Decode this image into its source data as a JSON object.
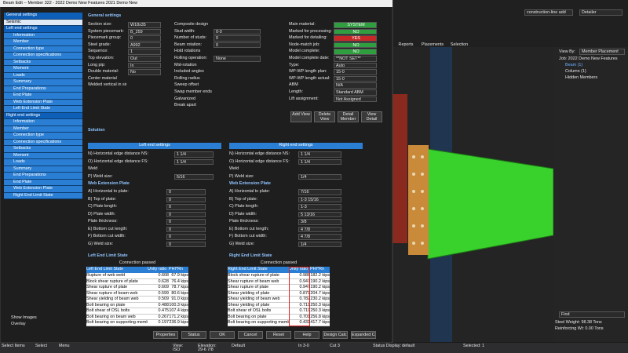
{
  "app": {
    "toolbar": [
      "Reports",
      "Placements",
      "Selection"
    ],
    "search": "construction-line add",
    "role": "Detailer"
  },
  "dialog": {
    "title": "Beam Edit -- Member 322 - 2022 Demo New Features 2021 Demo New",
    "nav": [
      {
        "text": "General settings"
      },
      {
        "text": "Seismic"
      },
      {
        "text": "Left end settings",
        "items": [
          "Information",
          "Member",
          "Connection type",
          "Connection specifications",
          "Setbacks",
          "Moment",
          "Loads",
          "Summary",
          "End Preparations",
          "End Plate",
          "Web Extension Plate",
          "Left End Limit State"
        ]
      },
      {
        "text": "Right end settings",
        "items": [
          "Information",
          "Member",
          "Connection type",
          "Connection specifications",
          "Setbacks",
          "Moment",
          "Loads",
          "Summary",
          "End Preparations",
          "End Plate",
          "Web Extension Plate",
          "Right End Limit State"
        ]
      }
    ],
    "nav_bottom": [
      "Show Images",
      "Overlay"
    ],
    "general": {
      "heading": "General settings",
      "col1": [
        [
          "Section size:",
          "W18x35"
        ],
        [
          "System piecemark:",
          "B_259"
        ],
        [
          "Piecemark group:",
          "0"
        ],
        [
          "Steel grade:",
          "A992"
        ],
        [
          "Sequence:",
          "1"
        ],
        [
          "Top elevation:",
          "Out"
        ],
        [
          "Long pip:",
          "In"
        ],
        [
          "Double material:",
          "No"
        ],
        [
          "Center material"
        ],
        [
          "Welded vertical in single material"
        ]
      ],
      "col2": [
        [
          "Composite design"
        ],
        [
          "Stud width:",
          "0-0"
        ],
        [
          "Number of studs:",
          "0"
        ],
        [
          "Beam rotation:",
          "0"
        ],
        [
          "Hold rotations"
        ],
        [
          "Rolling operation:",
          "None"
        ],
        [
          "Mid-rotation"
        ],
        [
          "Included angles"
        ],
        [
          "Rolling radius"
        ],
        [
          "Sweep offset"
        ],
        [
          "Swap member ends"
        ],
        [
          "Galvanized"
        ],
        [
          "Break apart"
        ]
      ],
      "col3": [
        [
          "Main material:",
          "SYSTEM",
          "#2e9e3e"
        ],
        [
          "Marked for processing:",
          "NO",
          "#2e9e3e"
        ],
        [
          "Marked for detailing:",
          "YES",
          "#c62828"
        ],
        [
          "Node-match job:",
          "NO",
          "#2e9e3e"
        ],
        [
          "Model complete:",
          "NO",
          "#2e9e3e"
        ],
        [
          "Model complete date:",
          "**NOT SET**"
        ],
        [
          "Type:",
          "Auto"
        ],
        [
          "WP-WP length plan:",
          "15-0"
        ],
        [
          "WP-WP length actual:",
          "15-0"
        ],
        [
          "ABM",
          "N/A"
        ],
        [
          "Length:",
          "Standard ABM"
        ],
        [
          "Lift assignment:",
          "Not Assigned"
        ]
      ],
      "buttons": [
        "Add View",
        "Delete View",
        "Detail Member",
        "View Detail"
      ]
    },
    "solution": "Solution",
    "ends": {
      "left_title": "Left end settings",
      "right_title": "Right end settings",
      "rows": [
        [
          "N) Horizontal edge distance NS:",
          "1 1/4",
          "1 1/4"
        ],
        [
          "O) Horizontal edge distance FS:",
          "1 1/4",
          "1 1/4"
        ],
        [
          "Weld"
        ],
        [
          "P) Weld size:",
          "5/16",
          "1/4"
        ]
      ]
    },
    "web_plate": {
      "heading": "Web Extension Plate",
      "rows": [
        [
          "A) Horizontal to plate:",
          "0",
          "7/16"
        ],
        [
          "B) Top of plate:",
          "0",
          "1-3 15/16"
        ],
        [
          "C) Plate length:",
          "0",
          "1-3"
        ],
        [
          "D) Plate width:",
          "0",
          "5 13/16"
        ],
        [
          "Plate thickness:",
          "0",
          "3/8"
        ],
        [
          "E) Bottom cut length:",
          "0",
          "4 7/8"
        ],
        [
          "F) Bottom cut width:",
          "0",
          "4 7/8"
        ],
        [
          "G) Weld size:",
          "0",
          "1/4"
        ]
      ]
    },
    "limit_left": {
      "heading": "Left End Limit State",
      "status": "Connection passed",
      "columns": [
        "Left End Limit State",
        "Unity ratio",
        "PHI*Rn"
      ],
      "rows": [
        [
          "Rupture of web weld",
          "0.608",
          "67.9 kips"
        ],
        [
          "Block shear rupture of plate",
          "0.628",
          "76.4 kips"
        ],
        [
          "Shear rupture of plate",
          "0.609",
          "78.7 kips"
        ],
        [
          "Shear rupture of beam web",
          "0.599",
          "80.6 kips"
        ],
        [
          "Shear yielding of beam web",
          "0.509",
          "91.0 kips"
        ],
        [
          "Bolt bearing on plate",
          "0.488",
          "100.3 kips"
        ],
        [
          "Bolt shear of OSL bolts",
          "0.475",
          "107.4 kips"
        ],
        [
          "Bolt bearing on beam web",
          "0.267",
          "171.2 kips"
        ],
        [
          "Bolt bearing on supporting memb",
          "0.197",
          "236.9 kips"
        ]
      ]
    },
    "limit_right": {
      "heading": "Right End Limit State",
      "status": "Connection passed",
      "columns": [
        "Right End Limit State",
        "Unity ratio",
        "PHI*Rn"
      ],
      "rows": [
        [
          "Block shear rupture of plate",
          "0.988",
          "182.2 kips"
        ],
        [
          "Shear rupture of beam web",
          "0.947",
          "190.2 kips"
        ],
        [
          "Shear rupture of plate",
          "0.947",
          "190.2 kips"
        ],
        [
          "Shear yielding of plate",
          "0.879",
          "204.7 kips"
        ],
        [
          "Shear yielding of beam web",
          "0.782",
          "230.2 kips"
        ],
        [
          "Shear yielding of plate",
          "0.719",
          "250.3 kips"
        ],
        [
          "Bolt shear of OSL bolts",
          "0.719",
          "250.3 kips"
        ],
        [
          "Bolt bearing on plate",
          "0.701",
          "256.8 kips"
        ],
        [
          "Bolt bearing on supporting memb",
          "0.431",
          "417.7 kips"
        ]
      ]
    },
    "buttons": [
      "Properties",
      "Status",
      "OK",
      "Cancel",
      "Reset",
      "Help",
      "Design Calc",
      "Expanded Calc"
    ]
  },
  "panel": {
    "view_by": "View By:",
    "view_by_value": "Member Placement",
    "tree": [
      "Job: 2022 Demo New Features",
      "Beam (1)",
      "Column (1)",
      "Hidden Members"
    ],
    "find": "Find",
    "steel_weight": "Steel Weight: 98.38 Tons",
    "reinforcing": "Reinforcing Wt: 0.00 Tons"
  },
  "status": {
    "left": "Select Items",
    "select": "Select",
    "menu": "Menu",
    "view": "View:",
    "view_value": "ISO",
    "elevation": "Elevation:",
    "elevation_value": "29-6 7/8",
    "default": "Default",
    "in": "In 3-0",
    "cut": "Cut 3",
    "display": "Status Display:",
    "display_value": "default",
    "selected": "Selected: 1"
  }
}
